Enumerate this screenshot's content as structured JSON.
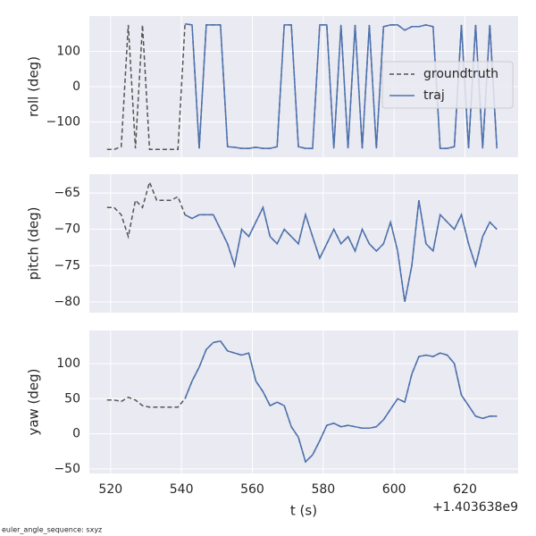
{
  "chart_data": [
    {
      "type": "line",
      "ylabel": "roll (deg)",
      "xlim": [
        514,
        635
      ],
      "xticks": [
        520,
        540,
        560,
        580,
        600,
        620
      ],
      "ylim": [
        -200,
        200
      ],
      "yticks": [
        {
          "value": -100,
          "label": "−100"
        },
        0,
        100
      ],
      "grid": true,
      "legend": "center right",
      "x": [
        519,
        521,
        523,
        525,
        527,
        529,
        531,
        533,
        535,
        537,
        539,
        541,
        543,
        545,
        547,
        549,
        551,
        553,
        555,
        557,
        559,
        561,
        563,
        565,
        567,
        569,
        571,
        573,
        575,
        577,
        579,
        581,
        583,
        585,
        587,
        589,
        591,
        593,
        595,
        597,
        599,
        601,
        603,
        605,
        607,
        609,
        611,
        613,
        615,
        617,
        619,
        621,
        623,
        625,
        627,
        629
      ],
      "series": [
        {
          "name": "groundtruth",
          "color": "#555555",
          "dash": true,
          "values": [
            -178,
            -178,
            -170,
            175,
            -175,
            175,
            -178,
            -178,
            -178,
            -178,
            -178,
            178,
            175,
            -175,
            175,
            175,
            175,
            -170,
            -172,
            -175,
            -175,
            -172,
            -175,
            -175,
            -170,
            175,
            175,
            -170,
            -175,
            -175,
            175,
            175,
            -175,
            175,
            -175,
            175,
            -175,
            175,
            -175,
            170,
            175,
            175,
            160,
            170,
            170,
            175,
            170,
            -175,
            -175,
            -170,
            175,
            -175,
            175,
            -175,
            175,
            -175
          ]
        },
        {
          "name": "traj",
          "color": "#4c72b0",
          "dash": false,
          "values": [
            null,
            null,
            null,
            null,
            null,
            null,
            null,
            null,
            null,
            null,
            null,
            178,
            175,
            -175,
            175,
            175,
            175,
            -170,
            -172,
            -175,
            -175,
            -172,
            -175,
            -175,
            -170,
            175,
            175,
            -170,
            -175,
            -175,
            175,
            175,
            -175,
            175,
            -175,
            175,
            -175,
            175,
            -175,
            170,
            175,
            175,
            160,
            170,
            170,
            175,
            170,
            -175,
            -175,
            -170,
            175,
            -175,
            175,
            -175,
            175,
            -175
          ]
        }
      ]
    },
    {
      "type": "line",
      "ylabel": "pitch (deg)",
      "xlim": [
        514,
        635
      ],
      "xticks": [
        520,
        540,
        560,
        580,
        600,
        620
      ],
      "ylim": [
        -81.5,
        -62.4
      ],
      "yticks": [
        {
          "value": -80,
          "label": "−80"
        },
        {
          "value": -75,
          "label": "−75"
        },
        {
          "value": -70,
          "label": "−70"
        },
        {
          "value": -65,
          "label": "−65"
        }
      ],
      "grid": true,
      "x": [
        519,
        521,
        523,
        525,
        527,
        529,
        531,
        533,
        535,
        537,
        539,
        541,
        543,
        545,
        547,
        549,
        551,
        553,
        555,
        557,
        559,
        561,
        563,
        565,
        567,
        569,
        571,
        573,
        575,
        577,
        579,
        581,
        583,
        585,
        587,
        589,
        591,
        593,
        595,
        597,
        599,
        601,
        603,
        605,
        607,
        609,
        611,
        613,
        615,
        617,
        619,
        621,
        623,
        625,
        627,
        629
      ],
      "series": [
        {
          "name": "groundtruth",
          "color": "#555555",
          "dash": true,
          "values": [
            -67,
            -67,
            -68,
            -71,
            -66,
            -67,
            -63.5,
            -66,
            -66,
            -66,
            -65.5,
            -68,
            -68.5,
            -68,
            -68,
            -68,
            -70,
            -72,
            -75,
            -70,
            -71,
            -69,
            -67,
            -71,
            -72,
            -70,
            -71,
            -72,
            -68,
            -71,
            -74,
            -72,
            -70,
            -72,
            -71,
            -73,
            -70,
            -72,
            -73,
            -72,
            -69,
            -73,
            -80,
            -75,
            -66,
            -72,
            -73,
            -68,
            -69,
            -70,
            -68,
            -72,
            -75,
            -71,
            -69,
            -70
          ]
        },
        {
          "name": "traj",
          "color": "#4c72b0",
          "dash": false,
          "values": [
            null,
            null,
            null,
            null,
            null,
            null,
            null,
            null,
            null,
            null,
            null,
            -68,
            -68.5,
            -68,
            -68,
            -68,
            -70,
            -72,
            -75,
            -70,
            -71,
            -69,
            -67,
            -71,
            -72,
            -70,
            -71,
            -72,
            -68,
            -71,
            -74,
            -72,
            -70,
            -72,
            -71,
            -73,
            -70,
            -72,
            -73,
            -72,
            -69,
            -73,
            -80,
            -75,
            -66,
            -72,
            -73,
            -68,
            -69,
            -70,
            -68,
            -72,
            -75,
            -71,
            -69,
            -70
          ]
        }
      ]
    },
    {
      "type": "line",
      "ylabel": "yaw (deg)",
      "xlabel": "t (s)",
      "offset": "+1.403638e9",
      "xlim": [
        514,
        635
      ],
      "xticks": [
        520,
        540,
        560,
        580,
        600,
        620
      ],
      "ylim": [
        -56.5,
        147
      ],
      "yticks": [
        {
          "value": -50,
          "label": "−50"
        },
        0,
        50,
        100
      ],
      "grid": true,
      "x": [
        519,
        521,
        523,
        525,
        527,
        529,
        531,
        533,
        535,
        537,
        539,
        541,
        543,
        545,
        547,
        549,
        551,
        553,
        555,
        557,
        559,
        561,
        563,
        565,
        567,
        569,
        571,
        573,
        575,
        577,
        579,
        581,
        583,
        585,
        587,
        589,
        591,
        593,
        595,
        597,
        599,
        601,
        603,
        605,
        607,
        609,
        611,
        613,
        615,
        617,
        619,
        621,
        623,
        625,
        627,
        629
      ],
      "series": [
        {
          "name": "groundtruth",
          "color": "#555555",
          "dash": true,
          "values": [
            48,
            48,
            46,
            52,
            48,
            40,
            38,
            38,
            38,
            38,
            38,
            50,
            75,
            95,
            120,
            130,
            132,
            118,
            115,
            112,
            115,
            75,
            60,
            40,
            45,
            40,
            10,
            -5,
            -40,
            -30,
            -10,
            12,
            15,
            10,
            12,
            10,
            8,
            8,
            10,
            20,
            35,
            50,
            45,
            85,
            110,
            112,
            110,
            115,
            112,
            100,
            55,
            40,
            25,
            22,
            25,
            25
          ]
        },
        {
          "name": "traj",
          "color": "#4c72b0",
          "dash": false,
          "values": [
            null,
            null,
            null,
            null,
            null,
            null,
            null,
            null,
            null,
            null,
            null,
            50,
            75,
            95,
            120,
            130,
            132,
            118,
            115,
            112,
            115,
            75,
            60,
            40,
            45,
            40,
            10,
            -5,
            -40,
            -30,
            -10,
            12,
            15,
            10,
            12,
            10,
            8,
            8,
            10,
            20,
            35,
            50,
            45,
            85,
            110,
            112,
            110,
            115,
            112,
            100,
            55,
            40,
            25,
            22,
            25,
            25
          ]
        }
      ]
    }
  ],
  "footer": "euler_angle_sequence: sxyz"
}
